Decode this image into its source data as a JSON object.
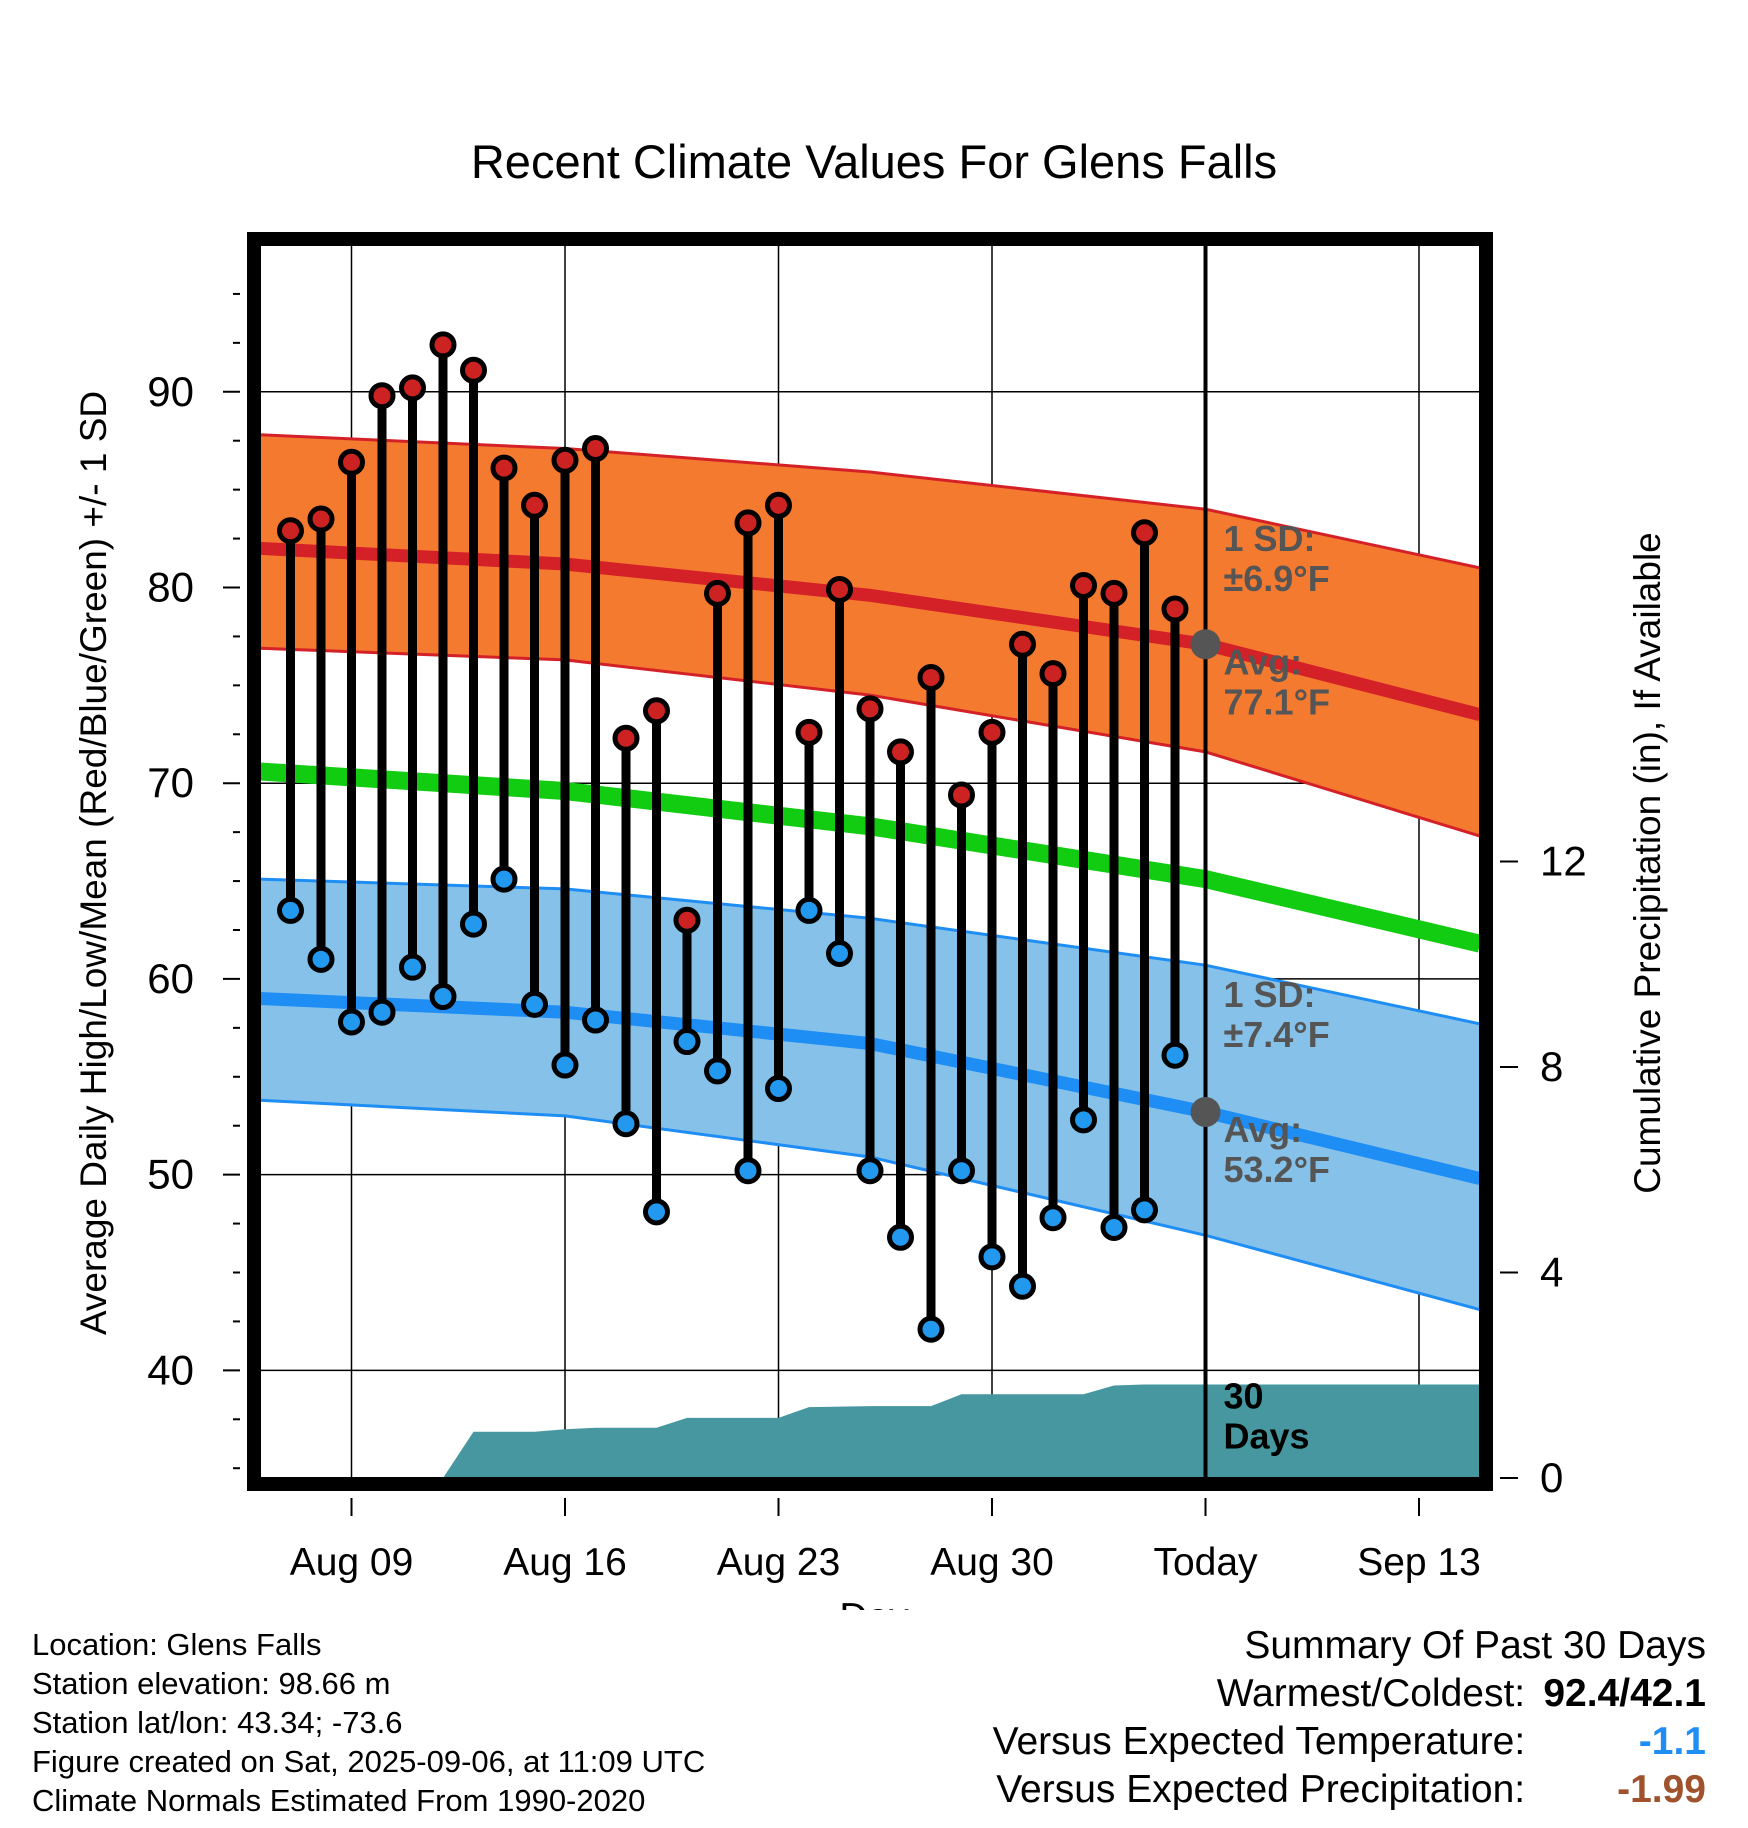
{
  "chart_data": {
    "type": "line",
    "title": "Recent Climate Values For Glens Falls",
    "xlabel": "Day",
    "ylabel": "Average Daily High/Low/Mean (Red/Blue/Green) +/- 1 SD",
    "y2label": "Cumulative Precipitation (in), If Available",
    "ylim": [
      34.5,
      97.5
    ],
    "y2lim": [
      0,
      24
    ],
    "xlim": [
      "2025-08-06",
      "2025-09-15"
    ],
    "yticks": [
      40,
      50,
      60,
      70,
      80,
      90
    ],
    "y2ticks": [
      0,
      4,
      8,
      12
    ],
    "xticks": [
      {
        "date": "2025-08-09",
        "label": "Aug 09"
      },
      {
        "date": "2025-08-16",
        "label": "Aug 16"
      },
      {
        "date": "2025-08-23",
        "label": "Aug 23"
      },
      {
        "date": "2025-08-30",
        "label": "Aug 30"
      },
      {
        "date": "2025-09-06",
        "label": "Today"
      },
      {
        "date": "2025-09-13",
        "label": "Sep 13"
      }
    ],
    "grid": true,
    "today": "2025-09-06",
    "observed": {
      "dates": [
        "2025-08-07",
        "2025-08-08",
        "2025-08-09",
        "2025-08-10",
        "2025-08-11",
        "2025-08-12",
        "2025-08-13",
        "2025-08-14",
        "2025-08-15",
        "2025-08-16",
        "2025-08-17",
        "2025-08-18",
        "2025-08-19",
        "2025-08-20",
        "2025-08-21",
        "2025-08-22",
        "2025-08-23",
        "2025-08-24",
        "2025-08-25",
        "2025-08-26",
        "2025-08-27",
        "2025-08-28",
        "2025-08-29",
        "2025-08-30",
        "2025-08-31",
        "2025-09-01",
        "2025-09-02",
        "2025-09-03",
        "2025-09-04",
        "2025-09-05"
      ],
      "highs": [
        82.9,
        83.5,
        86.4,
        89.8,
        90.2,
        92.4,
        91.1,
        86.1,
        84.2,
        86.5,
        87.1,
        72.3,
        73.7,
        63.0,
        79.7,
        83.3,
        84.2,
        72.6,
        79.9,
        73.8,
        71.6,
        75.4,
        69.4,
        72.6,
        77.1,
        75.6,
        80.1,
        79.7,
        82.8,
        78.9
      ],
      "lows": [
        63.5,
        61.0,
        57.8,
        58.3,
        60.6,
        59.1,
        62.8,
        65.1,
        58.7,
        55.6,
        57.9,
        52.6,
        48.1,
        56.8,
        55.3,
        50.2,
        54.4,
        63.5,
        61.3,
        50.2,
        46.8,
        42.1,
        50.2,
        45.8,
        44.3,
        47.8,
        52.8,
        47.3,
        48.2,
        56.1
      ]
    },
    "normal_high": {
      "dates": [
        "2025-08-06",
        "2025-08-16",
        "2025-08-26",
        "2025-09-06",
        "2025-09-15"
      ],
      "mean": [
        82.0,
        81.2,
        79.6,
        77.1,
        73.5
      ],
      "upper": [
        87.8,
        87.1,
        85.9,
        84.0,
        81.0
      ],
      "lower": [
        76.9,
        76.3,
        74.5,
        71.6,
        67.3
      ]
    },
    "normal_mean": {
      "dates": [
        "2025-08-06",
        "2025-08-16",
        "2025-08-26",
        "2025-09-06",
        "2025-09-15"
      ],
      "values": [
        70.6,
        69.6,
        67.8,
        65.1,
        61.8
      ]
    },
    "normal_low": {
      "dates": [
        "2025-08-06",
        "2025-08-16",
        "2025-08-26",
        "2025-09-06",
        "2025-09-15"
      ],
      "mean": [
        59.0,
        58.3,
        56.7,
        53.2,
        49.8
      ],
      "upper": [
        65.1,
        64.6,
        63.1,
        60.7,
        57.7
      ],
      "lower": [
        53.8,
        53.0,
        50.9,
        46.9,
        43.1
      ]
    },
    "precipitation": {
      "dates": [
        "2025-08-06",
        "2025-08-12",
        "2025-08-13",
        "2025-08-15",
        "2025-08-16",
        "2025-08-17",
        "2025-08-19",
        "2025-08-20",
        "2025-08-22",
        "2025-08-23",
        "2025-08-24",
        "2025-08-26",
        "2025-08-28",
        "2025-08-29",
        "2025-09-02",
        "2025-09-03",
        "2025-09-04",
        "2025-09-15"
      ],
      "values": [
        0,
        0,
        0.9,
        0.9,
        0.95,
        0.98,
        0.98,
        1.17,
        1.17,
        1.17,
        1.38,
        1.4,
        1.4,
        1.63,
        1.63,
        1.8,
        1.82,
        1.82
      ]
    },
    "annotations": [
      {
        "text_line1": "1 SD:",
        "text_line2": "±6.9°F",
        "value": 6.9
      },
      {
        "text_line1": "Avg:",
        "text_line2": "77.1°F",
        "value": 77.1
      },
      {
        "text_line1": "1 SD:",
        "text_line2": "±7.4°F",
        "value": 7.4
      },
      {
        "text_line1": "Avg:",
        "text_line2": "53.2°F",
        "value": 53.2
      },
      {
        "text_line1": "30",
        "text_line2": "Days"
      }
    ],
    "colors": {
      "high_band": "#f47a30",
      "high_line": "#d42127",
      "mean_line": "#11cc11",
      "low_band": "#85c1e8",
      "low_line": "#1e8ef5",
      "precip": "#46979f",
      "high_dot": "#cc2222",
      "low_dot": "#2299ee",
      "annotation": "#555555"
    }
  },
  "footer": {
    "location": "Location: Glens Falls",
    "elevation": "Station elevation: 98.66 m",
    "latlon": "Station lat/lon: 43.34; -73.6",
    "created": "Figure created on Sat, 2025-09-06, at 11:09 UTC",
    "normals": "Climate Normals Estimated From 1990-2020"
  },
  "summary": {
    "title": "Summary Of Past 30 Days",
    "warm_cold_label": "Warmest/Coldest:",
    "warm_cold_value": "92.4/42.1",
    "temp_label": "Versus Expected Temperature:",
    "temp_value": "-1.1",
    "temp_color": "#1e8ef5",
    "precip_label": "Versus Expected Precipitation:",
    "precip_value": "-1.99",
    "precip_color": "#a0522d"
  }
}
